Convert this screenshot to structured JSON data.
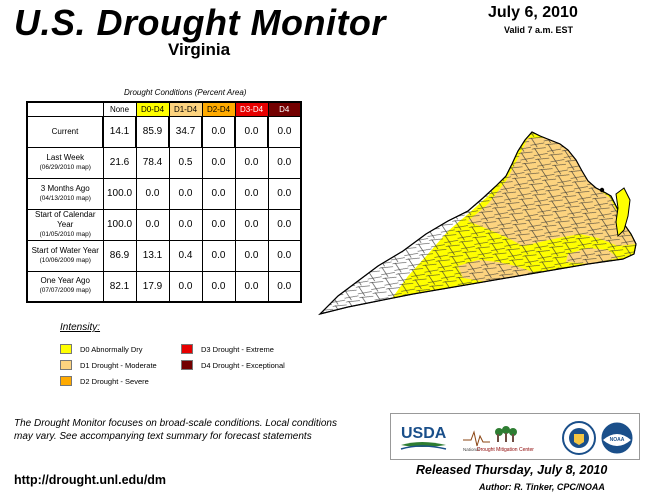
{
  "header": {
    "title": "U.S. Drought Monitor",
    "state": "Virginia",
    "date": "July 6, 2010",
    "valid": "Valid 7 a.m. EST"
  },
  "conditions": {
    "title": "Drought Conditions (Percent Area)",
    "columns": [
      "None",
      "D0-D4",
      "D1-D4",
      "D2-D4",
      "D3-D4",
      "D4"
    ],
    "column_colors": [
      "#ffffff",
      "#ffff00",
      "#fcd37f",
      "#ffaa00",
      "#e60000",
      "#730000"
    ],
    "rows": [
      {
        "label": "Current",
        "sublabel": "",
        "values": [
          "14.1",
          "85.9",
          "34.7",
          "0.0",
          "0.0",
          "0.0"
        ]
      },
      {
        "label": "Last Week",
        "sublabel": "(06/29/2010 map)",
        "values": [
          "21.6",
          "78.4",
          "0.5",
          "0.0",
          "0.0",
          "0.0"
        ]
      },
      {
        "label": "3 Months Ago",
        "sublabel": "(04/13/2010 map)",
        "values": [
          "100.0",
          "0.0",
          "0.0",
          "0.0",
          "0.0",
          "0.0"
        ]
      },
      {
        "label": "Start of Calendar Year",
        "sublabel": "(01/05/2010 map)",
        "values": [
          "100.0",
          "0.0",
          "0.0",
          "0.0",
          "0.0",
          "0.0"
        ]
      },
      {
        "label": "Start of Water Year",
        "sublabel": "(10/06/2009 map)",
        "values": [
          "86.9",
          "13.1",
          "0.4",
          "0.0",
          "0.0",
          "0.0"
        ]
      },
      {
        "label": "One Year Ago",
        "sublabel": "(07/07/2009 map)",
        "values": [
          "82.1",
          "17.9",
          "0.0",
          "0.0",
          "0.0",
          "0.0"
        ]
      }
    ]
  },
  "legend": {
    "title": "Intensity:",
    "items": [
      {
        "label": "D0 Abnormally Dry",
        "color": "#ffff00"
      },
      {
        "label": "D1 Drought - Moderate",
        "color": "#fcd37f"
      },
      {
        "label": "D2 Drought - Severe",
        "color": "#ffaa00"
      },
      {
        "label": "D3 Drought - Extreme",
        "color": "#e60000"
      },
      {
        "label": "D4 Drought - Exceptional",
        "color": "#730000"
      }
    ]
  },
  "notes": "The Drought Monitor focuses on broad-scale conditions. Local conditions may vary. See accompanying text summary for forecast statements",
  "url": "http://drought.unl.edu/dm",
  "released": "Released Thursday, July 8, 2010",
  "author": "Author: R. Tinker, CPC/NOAA",
  "logos": {
    "usda": "USDA",
    "ndmc_prefix": "National",
    "ndmc_name": "Drought Mitigation Center",
    "noaa": "NOAA"
  },
  "map": {
    "colors": {
      "none": "#ffffff",
      "d0": "#ffff00",
      "d1": "#fcd37f"
    }
  }
}
